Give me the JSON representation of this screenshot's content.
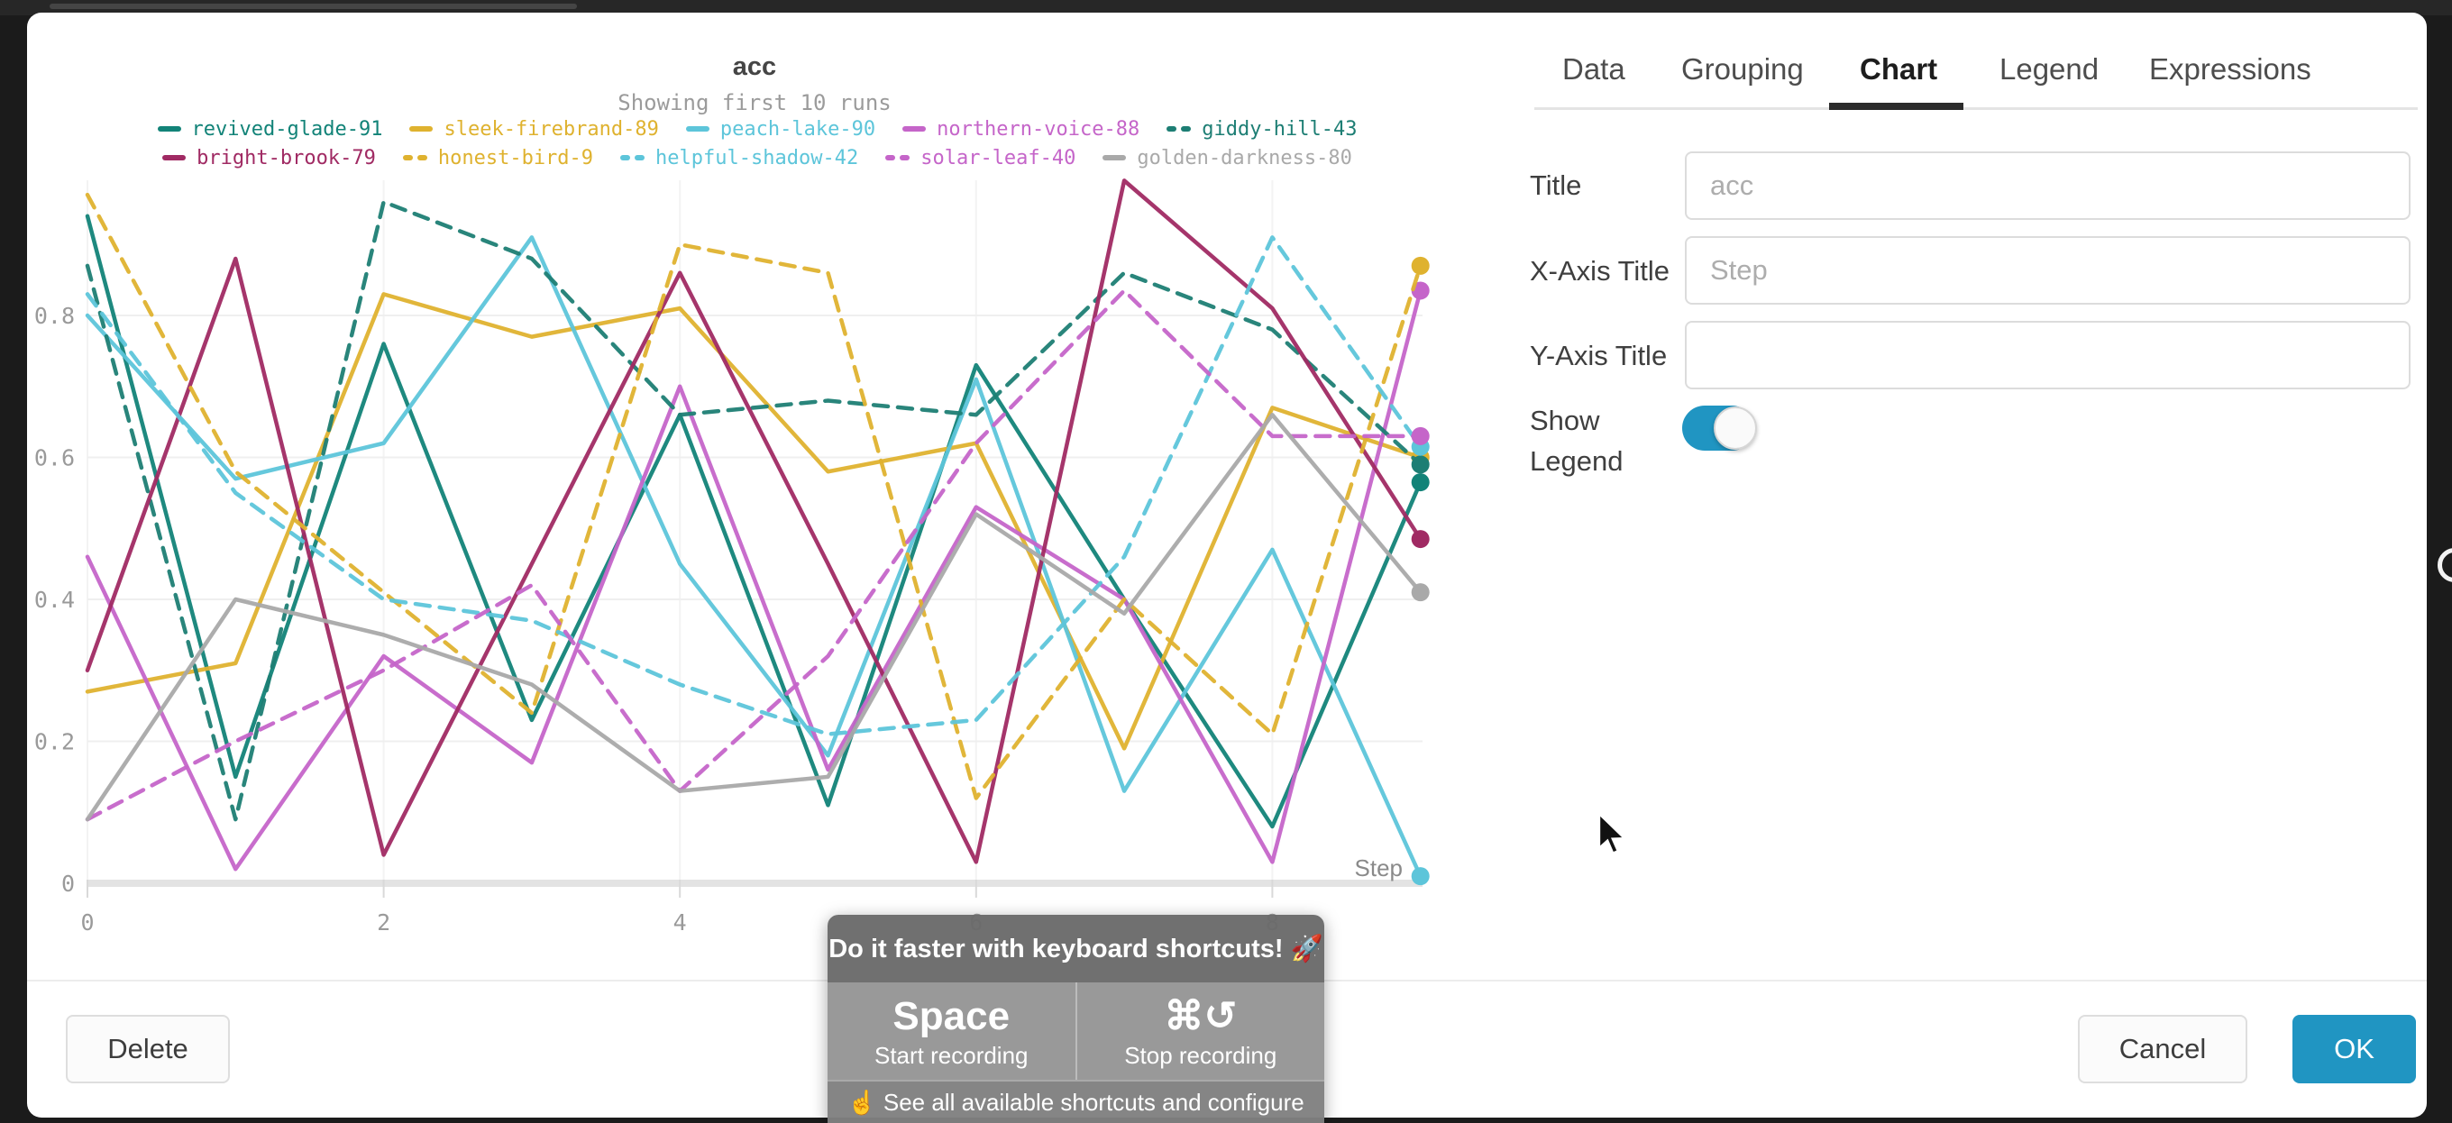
{
  "chart_data": {
    "type": "line",
    "title": "acc",
    "subtitle": "Showing first 10 runs",
    "xlabel": "Step",
    "x": [
      0,
      1,
      2,
      3,
      4,
      5,
      6,
      7,
      8,
      9
    ],
    "xticks": [
      0,
      2,
      4,
      6,
      8
    ],
    "yticks": [
      0,
      0.2,
      0.4,
      0.6,
      0.8
    ],
    "ylim": [
      0,
      1.0
    ],
    "grid": true,
    "legend_position": "top",
    "series": [
      {
        "name": "revived-glade-91",
        "color": "#128378",
        "dash": false,
        "values": [
          0.94,
          0.15,
          0.76,
          0.23,
          0.66,
          0.11,
          0.73,
          0.4,
          0.08,
          0.565
        ]
      },
      {
        "name": "sleek-firebrand-89",
        "color": "#dfb22f",
        "dash": false,
        "values": [
          0.27,
          0.31,
          0.83,
          0.77,
          0.81,
          0.58,
          0.62,
          0.19,
          0.67,
          0.6
        ]
      },
      {
        "name": "peach-lake-90",
        "color": "#5dc5da",
        "dash": false,
        "values": [
          0.8,
          0.57,
          0.62,
          0.91,
          0.45,
          0.18,
          0.71,
          0.13,
          0.47,
          0.01
        ]
      },
      {
        "name": "northern-voice-88",
        "color": "#c565c9",
        "dash": false,
        "values": [
          0.46,
          0.02,
          0.32,
          0.17,
          0.7,
          0.16,
          0.53,
          0.4,
          0.03,
          0.835
        ]
      },
      {
        "name": "giddy-hill-43",
        "color": "#1d7e74",
        "dash": true,
        "values": [
          0.87,
          0.09,
          0.96,
          0.88,
          0.66,
          0.68,
          0.66,
          0.86,
          0.78,
          0.59
        ]
      },
      {
        "name": "bright-brook-79",
        "color": "#a02a63",
        "dash": false,
        "values": [
          0.3,
          0.88,
          0.04,
          0.45,
          0.86,
          0.45,
          0.03,
          0.99,
          0.81,
          0.485
        ]
      },
      {
        "name": "honest-bird-9",
        "color": "#dfb22f",
        "dash": true,
        "values": [
          0.97,
          0.58,
          0.41,
          0.24,
          0.9,
          0.86,
          0.12,
          0.4,
          0.21,
          0.87
        ]
      },
      {
        "name": "helpful-shadow-42",
        "color": "#5dc5da",
        "dash": true,
        "values": [
          0.83,
          0.55,
          0.4,
          0.37,
          0.28,
          0.21,
          0.23,
          0.46,
          0.91,
          0.615
        ]
      },
      {
        "name": "solar-leaf-40",
        "color": "#c565c9",
        "dash": true,
        "values": [
          0.09,
          0.2,
          0.3,
          0.42,
          0.13,
          0.32,
          0.62,
          0.835,
          0.63,
          0.63
        ]
      },
      {
        "name": "golden-darkness-80",
        "color": "#a9a9a9",
        "dash": false,
        "values": [
          0.09,
          0.4,
          0.35,
          0.28,
          0.13,
          0.15,
          0.52,
          0.38,
          0.66,
          0.41
        ]
      }
    ]
  },
  "panel": {
    "tabs": [
      {
        "label": "Data",
        "active": false
      },
      {
        "label": "Grouping",
        "active": false
      },
      {
        "label": "Chart",
        "active": true
      },
      {
        "label": "Legend",
        "active": false
      },
      {
        "label": "Expressions",
        "active": false
      }
    ],
    "fields": {
      "title": {
        "label": "Title",
        "value": "",
        "placeholder": "acc"
      },
      "x_axis": {
        "label": "X-Axis Title",
        "value": "",
        "placeholder": "Step"
      },
      "y_axis": {
        "label": "Y-Axis Title",
        "value": "",
        "placeholder": ""
      },
      "show_legend": {
        "label_line1": "Show",
        "label_line2": "Legend",
        "enabled": true
      }
    },
    "accent_color": "#2095c2"
  },
  "footer": {
    "delete_label": "Delete",
    "cancel_label": "Cancel",
    "ok_label": "OK"
  },
  "shortcuts_toast": {
    "title": "Do it faster with keyboard shortcuts! 🚀",
    "shortcuts": [
      {
        "key": "Space",
        "action": "Start recording"
      },
      {
        "key": "⌘↺",
        "action": "Stop recording"
      }
    ],
    "footer_link": "☝️ See all available shortcuts and configure"
  }
}
